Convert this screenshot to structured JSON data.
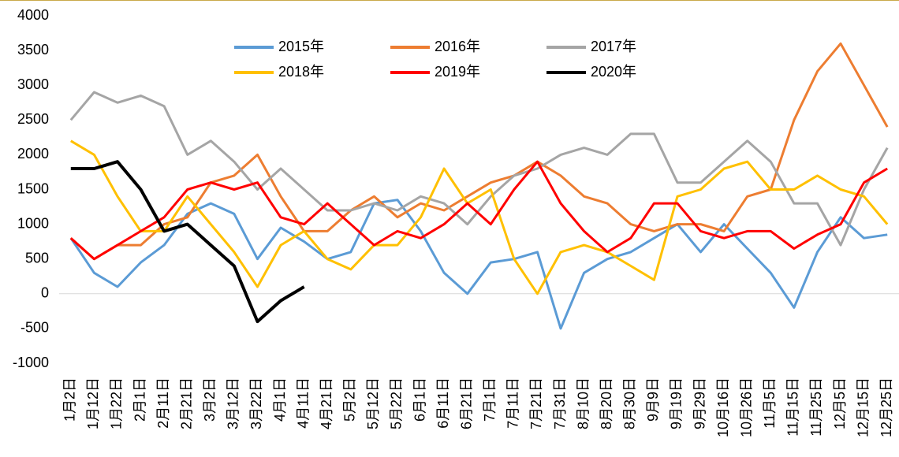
{
  "chart_data": {
    "type": "line",
    "categories": [
      "1月2日",
      "1月12日",
      "1月22日",
      "2月1日",
      "2月11日",
      "2月21日",
      "3月2日",
      "3月12日",
      "3月22日",
      "4月1日",
      "4月11日",
      "4月21日",
      "5月2日",
      "5月12日",
      "5月22日",
      "6月1日",
      "6月11日",
      "6月21日",
      "7月1日",
      "7月11日",
      "7月21日",
      "7月31日",
      "8月10日",
      "8月20日",
      "8月30日",
      "9月9日",
      "9月19日",
      "9月29日",
      "10月16日",
      "10月26日",
      "11月5日",
      "11月15日",
      "11月25日",
      "12月5日",
      "12月15日",
      "12月25日"
    ],
    "series": [
      {
        "name": "2015年",
        "color": "#5b9bd5",
        "values": [
          800,
          300,
          100,
          450,
          700,
          1150,
          1300,
          1150,
          500,
          950,
          750,
          500,
          600,
          1300,
          1350,
          900,
          300,
          0,
          450,
          500,
          600,
          -500,
          300,
          500,
          600,
          800,
          1000,
          600,
          1000,
          650,
          300,
          -200,
          600,
          1100,
          800,
          850
        ]
      },
      {
        "name": "2016年",
        "color": "#ed7d31",
        "values": [
          800,
          500,
          700,
          700,
          1000,
          1100,
          1600,
          1700,
          2000,
          1400,
          900,
          900,
          1200,
          1400,
          1100,
          1300,
          1200,
          1400,
          1600,
          1700,
          1900,
          1700,
          1400,
          1300,
          1000,
          900,
          1000,
          1000,
          900,
          1400,
          1500,
          2500,
          3200,
          3600,
          3000,
          2400
        ]
      },
      {
        "name": "2017年",
        "color": "#a5a5a5",
        "values": [
          2500,
          2900,
          2750,
          2850,
          2700,
          2000,
          2200,
          1900,
          1500,
          1800,
          1500,
          1200,
          1200,
          1300,
          1200,
          1400,
          1300,
          1000,
          1400,
          1700,
          1800,
          2000,
          2100,
          2000,
          2300,
          2300,
          1600,
          1600,
          1900,
          2200,
          1900,
          1300,
          1300,
          700,
          1500,
          2100
        ]
      },
      {
        "name": "2018年",
        "color": "#ffc000",
        "values": [
          2200,
          2000,
          1400,
          900,
          900,
          1400,
          1000,
          600,
          100,
          700,
          900,
          500,
          350,
          700,
          700,
          1100,
          1800,
          1300,
          1500,
          500,
          0,
          600,
          700,
          600,
          400,
          200,
          1400,
          1500,
          1800,
          1900,
          1500,
          1500,
          1700,
          1500,
          1400,
          1000
        ]
      },
      {
        "name": "2019年",
        "color": "#ff0000",
        "values": [
          800,
          500,
          700,
          900,
          1100,
          1500,
          1600,
          1500,
          1600,
          1100,
          1000,
          1300,
          1000,
          700,
          900,
          800,
          1000,
          1300,
          1000,
          1500,
          1900,
          1300,
          900,
          600,
          800,
          1300,
          1300,
          900,
          800,
          900,
          900,
          650,
          850,
          1000,
          1600,
          1800
        ]
      },
      {
        "name": "2020年",
        "color": "#000000",
        "values": [
          1800,
          1800,
          1900,
          1500,
          900,
          1000,
          700,
          400,
          -400,
          -100,
          100,
          null,
          null,
          null,
          null,
          null,
          null,
          null,
          null,
          null,
          null,
          null,
          null,
          null,
          null,
          null,
          null,
          null,
          null,
          null,
          null,
          null,
          null,
          null,
          null,
          null
        ]
      }
    ],
    "ylim": [
      -1000,
      4000
    ],
    "yticks": [
      -1000,
      -500,
      0,
      500,
      1000,
      1500,
      2000,
      2500,
      3000,
      3500,
      4000
    ],
    "grid": false,
    "legend": "top"
  }
}
